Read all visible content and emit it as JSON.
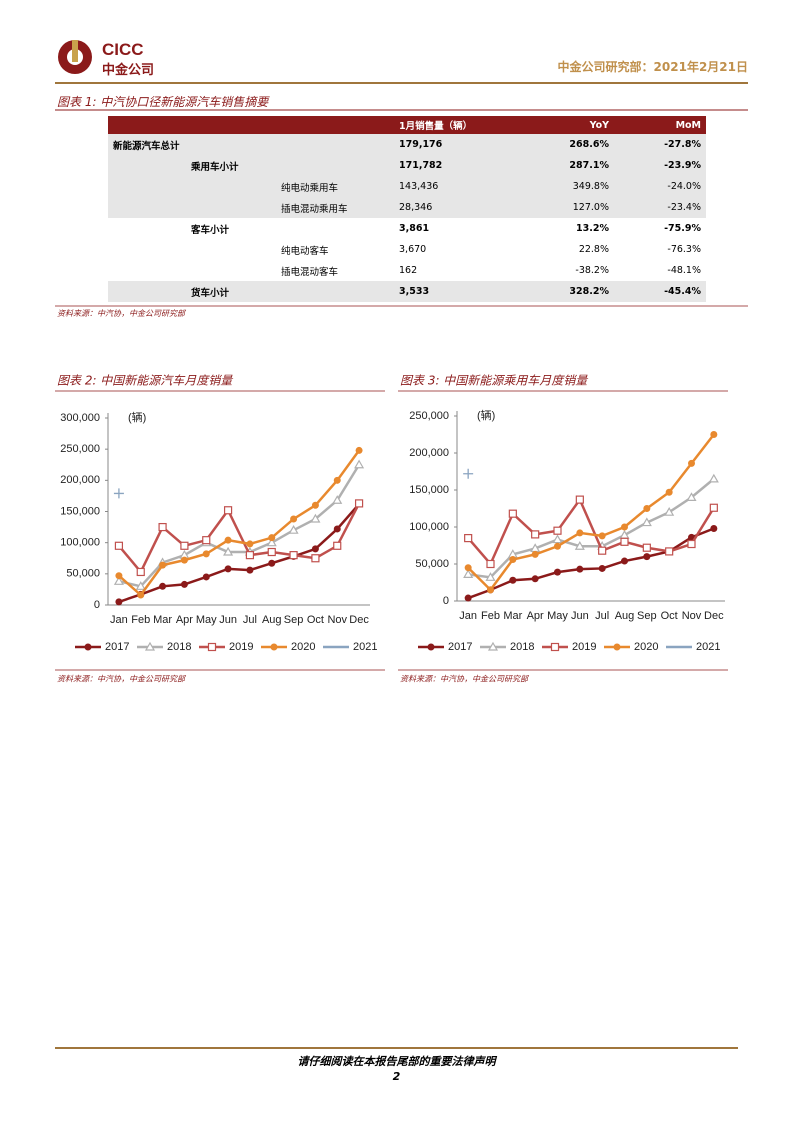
{
  "header": {
    "logo_en": "CICC",
    "logo_cn": "中金公司",
    "right": "中金公司研究部：2021年2月21日"
  },
  "table": {
    "title": "图表 1: 中汽协口径新能源汽车销售摘要",
    "columns": [
      "1月销售量（辆）",
      "YoY",
      "MoM"
    ],
    "total": {
      "label": "新能源汽车总计",
      "values": [
        "179,176",
        "268.6%",
        "-27.8%"
      ]
    },
    "groups": [
      {
        "label": "乘用车小计",
        "values": [
          "171,782",
          "287.1%",
          "-23.9%"
        ],
        "items": [
          {
            "label": "纯电动乘用车",
            "values": [
              "143,436",
              "349.8%",
              "-24.0%"
            ]
          },
          {
            "label": "插电混动乘用车",
            "values": [
              "28,346",
              "127.0%",
              "-23.4%"
            ]
          }
        ]
      },
      {
        "label": "客车小计",
        "values": [
          "3,861",
          "13.2%",
          "-75.9%"
        ],
        "items": [
          {
            "label": "纯电动客车",
            "values": [
              "3,670",
              "22.8%",
              "-76.3%"
            ]
          },
          {
            "label": "插电混动客车",
            "values": [
              "162",
              "-38.2%",
              "-48.1%"
            ]
          }
        ]
      },
      {
        "label": "货车小计",
        "values": [
          "3,533",
          "328.2%",
          "-45.4%"
        ],
        "items": []
      }
    ],
    "source": "资料来源：中汽协，中金公司研究部"
  },
  "chart_data": [
    {
      "type": "line",
      "title": "图表 2: 中国新能源汽车月度销量",
      "y_label": "(辆)",
      "source": "资料来源：中汽协，中金公司研究部",
      "categories": [
        "Jan",
        "Feb",
        "Mar",
        "Apr",
        "May",
        "Jun",
        "Jul",
        "Aug",
        "Sep",
        "Oct",
        "Nov",
        "Dec"
      ],
      "ylim": [
        0,
        300000
      ],
      "yticks": [
        0,
        {
          "value": 50000,
          "label": "50,000"
        },
        {
          "value": 100000,
          "label": "100,000"
        },
        {
          "value": 150000,
          "label": "150,000"
        },
        {
          "value": 200000,
          "label": "200,000"
        },
        {
          "value": 250000,
          "label": "250,000"
        },
        {
          "value": 300000,
          "label": "300,000"
        }
      ],
      "series": [
        {
          "name": "2017",
          "color": "#8b1a1a",
          "marker": "circle",
          "values": [
            5000,
            17000,
            30000,
            33000,
            45000,
            58000,
            56000,
            67000,
            78000,
            90000,
            122000,
            162000
          ]
        },
        {
          "name": "2018",
          "color": "#b0b0b0",
          "marker": "triangle",
          "values": [
            38000,
            30000,
            68000,
            80000,
            100000,
            85000,
            85000,
            100000,
            120000,
            138000,
            168000,
            225000
          ]
        },
        {
          "name": "2019",
          "color": "#c0504d",
          "marker": "square",
          "values": [
            95000,
            53000,
            125000,
            95000,
            104000,
            152000,
            80000,
            85000,
            80000,
            75000,
            95000,
            163000
          ]
        },
        {
          "name": "2020",
          "color": "#e8892e",
          "marker": "circle",
          "values": [
            47000,
            16000,
            64000,
            72000,
            82000,
            104000,
            98000,
            108000,
            138000,
            160000,
            200000,
            248000
          ]
        },
        {
          "name": "2021",
          "color": "#8aa4c0",
          "marker": "plus",
          "values": [
            179000,
            null,
            null,
            null,
            null,
            null,
            null,
            null,
            null,
            null,
            null,
            null
          ]
        }
      ]
    },
    {
      "type": "line",
      "title": "图表 3: 中国新能源乘用车月度销量",
      "y_label": "(辆)",
      "source": "资料来源：中汽协，中金公司研究部",
      "categories": [
        "Jan",
        "Feb",
        "Mar",
        "Apr",
        "May",
        "Jun",
        "Jul",
        "Aug",
        "Sep",
        "Oct",
        "Nov",
        "Dec"
      ],
      "ylim": [
        0,
        250000
      ],
      "yticks": [
        0,
        {
          "value": 50000,
          "label": "50,000"
        },
        {
          "value": 100000,
          "label": "100,000"
        },
        {
          "value": 150000,
          "label": "150,000"
        },
        {
          "value": 200000,
          "label": "200,000"
        },
        {
          "value": 250000,
          "label": "250,000"
        }
      ],
      "series": [
        {
          "name": "2017",
          "color": "#8b1a1a",
          "marker": "circle",
          "values": [
            4000,
            15000,
            28000,
            30000,
            39000,
            43000,
            44000,
            54000,
            60000,
            67000,
            86000,
            98000
          ]
        },
        {
          "name": "2018",
          "color": "#b0b0b0",
          "marker": "triangle",
          "values": [
            36000,
            32000,
            63000,
            71000,
            83000,
            74000,
            74000,
            89000,
            106000,
            120000,
            140000,
            165000
          ]
        },
        {
          "name": "2019",
          "color": "#c0504d",
          "marker": "square",
          "values": [
            85000,
            50000,
            118000,
            90000,
            95000,
            137000,
            68000,
            80000,
            72000,
            67000,
            77000,
            126000
          ]
        },
        {
          "name": "2020",
          "color": "#e8892e",
          "marker": "circle",
          "values": [
            45000,
            15000,
            56000,
            63000,
            74000,
            92000,
            88000,
            100000,
            125000,
            147000,
            186000,
            225000
          ]
        },
        {
          "name": "2021",
          "color": "#8aa4c0",
          "marker": "plus",
          "values": [
            172000,
            null,
            null,
            null,
            null,
            null,
            null,
            null,
            null,
            null,
            null,
            null
          ]
        }
      ]
    }
  ],
  "footer": {
    "notice": "请仔细阅读在本报告尾部的重要法律声明",
    "page": "2"
  }
}
